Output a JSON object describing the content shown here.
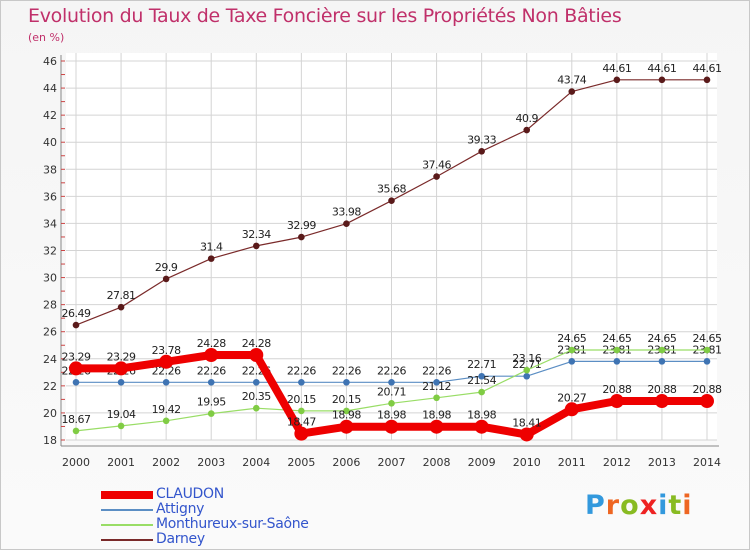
{
  "chart_data": {
    "type": "line",
    "title": "Evolution du Taux de Taxe Foncière sur les Propriétés Non Bâties",
    "subtitle": "(en %)",
    "x": [
      "2000",
      "2001",
      "2002",
      "2003",
      "2004",
      "2005",
      "2006",
      "2007",
      "2008",
      "2009",
      "2010",
      "2011",
      "2012",
      "2013",
      "2014"
    ],
    "ylim": [
      18,
      46
    ],
    "yticks": [
      "18",
      "20",
      "22",
      "24",
      "26",
      "28",
      "30",
      "32",
      "34",
      "36",
      "38",
      "40",
      "42",
      "44",
      "46"
    ],
    "grid": true,
    "legend_position": "bottom-left",
    "series": [
      {
        "name": "Darney",
        "color": "#7a2a2a",
        "values": [
          26.49,
          27.81,
          29.9,
          31.4,
          32.34,
          32.99,
          33.98,
          35.68,
          37.46,
          39.33,
          40.9,
          43.74,
          44.61,
          44.61,
          44.61
        ],
        "labels": [
          "26.49",
          "27.81",
          "29.9",
          "31.4",
          "32.34",
          "32.99",
          "33.98",
          "35.68",
          "37.46",
          "39.33",
          "40.9",
          "43.74",
          "44.61",
          "44.61",
          "44.61"
        ]
      },
      {
        "name": "Attigny",
        "color": "#5b8ec4",
        "values": [
          22.26,
          22.26,
          22.26,
          22.26,
          22.26,
          22.26,
          22.26,
          22.26,
          22.26,
          22.71,
          22.71,
          23.81,
          23.81,
          23.81,
          23.81
        ],
        "labels": [
          "22.26",
          "22.26",
          "22.26",
          "22.26",
          "22.26",
          "22.26",
          "22.26",
          "22.26",
          "22.26",
          "22.71",
          "22.71",
          "23.81",
          "23.81",
          "23.81",
          "23.81"
        ]
      },
      {
        "name": "Monthureux-sur-Saône",
        "color": "#99dd66",
        "values": [
          18.67,
          19.04,
          19.42,
          19.95,
          20.35,
          20.15,
          20.15,
          20.71,
          21.12,
          21.54,
          23.16,
          24.65,
          24.65,
          24.65,
          24.65
        ],
        "labels": [
          "18.67",
          "19.04",
          "19.42",
          "19.95",
          "20.35",
          "20.15",
          "20.15",
          "20.71",
          "21.12",
          "21.54",
          "23.16",
          "24.65",
          "24.65",
          "24.65",
          "24.65"
        ]
      },
      {
        "name": "CLAUDON",
        "color": "#ee0000",
        "values": [
          23.29,
          23.29,
          23.78,
          24.28,
          24.28,
          18.47,
          18.98,
          18.98,
          18.98,
          18.98,
          18.41,
          20.27,
          20.88,
          20.88,
          20.88
        ],
        "labels": [
          "23.29",
          "23.29",
          "23.78",
          "24.28",
          "24.28",
          "18.47",
          "18.98",
          "18.98",
          "18.98",
          "18.98",
          "18.41",
          "20.27",
          "20.88",
          "20.88",
          "20.88"
        ]
      }
    ]
  },
  "legend": [
    {
      "label": "CLAUDON",
      "color": "#ee0000"
    },
    {
      "label": "Attigny",
      "color": "#5b8ec4"
    },
    {
      "label": "Monthureux-sur-Saône",
      "color": "#99dd66"
    },
    {
      "label": "Darney",
      "color": "#7a2a2a"
    }
  ],
  "logo": {
    "text": [
      "P",
      "r",
      "o",
      "x",
      "i",
      "t",
      "i"
    ],
    "colors": [
      "#3399dd",
      "#ee6622",
      "#88bb22",
      "#ee2222",
      "#3399dd",
      "#88bb22",
      "#ee6622"
    ],
    "icon": "proxiti-logo"
  }
}
